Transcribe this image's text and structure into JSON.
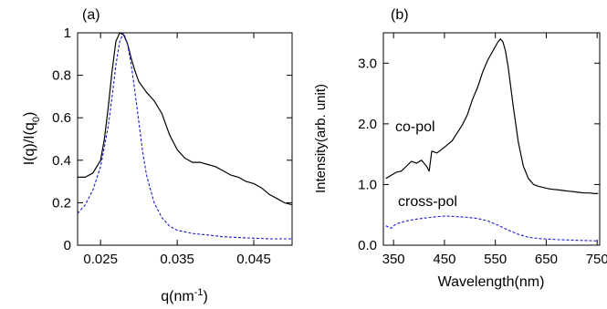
{
  "chart_data": [
    {
      "type": "line",
      "panel_label": "(a)",
      "xlabel": "q(nm",
      "xlabel_sup": "-1",
      "xlabel_close": ")",
      "ylabel": "I(q)/I(q",
      "ylabel_sub": "0",
      "ylabel_close": ")",
      "xlim": [
        0.022,
        0.05
      ],
      "ylim": [
        0,
        1
      ],
      "xticks": [
        0.025,
        0.035,
        0.045
      ],
      "xtick_labels": [
        "0.025",
        "0.035",
        "0.045"
      ],
      "yticks": [
        0,
        0.2,
        0.4,
        0.6,
        0.8,
        1
      ],
      "ytick_labels": [
        "0",
        "0.2",
        "0.4",
        "0.6",
        "0.8",
        "1"
      ],
      "series": [
        {
          "color": "#000000",
          "dash": "solid",
          "x": [
            0.022,
            0.023,
            0.024,
            0.025,
            0.0255,
            0.026,
            0.0265,
            0.027,
            0.0275,
            0.028,
            0.0285,
            0.029,
            0.0295,
            0.03,
            0.031,
            0.032,
            0.033,
            0.034,
            0.035,
            0.036,
            0.037,
            0.038,
            0.039,
            0.04,
            0.041,
            0.042,
            0.043,
            0.044,
            0.045,
            0.046,
            0.047,
            0.048,
            0.049,
            0.05
          ],
          "y": [
            0.32,
            0.32,
            0.34,
            0.4,
            0.5,
            0.65,
            0.82,
            0.96,
            1.0,
            0.99,
            0.95,
            0.88,
            0.82,
            0.77,
            0.72,
            0.68,
            0.62,
            0.52,
            0.45,
            0.41,
            0.39,
            0.39,
            0.38,
            0.37,
            0.35,
            0.33,
            0.32,
            0.3,
            0.29,
            0.27,
            0.24,
            0.22,
            0.2,
            0.19
          ]
        },
        {
          "color": "#1a1acc",
          "dash": "dashed",
          "x": [
            0.022,
            0.023,
            0.024,
            0.025,
            0.026,
            0.0265,
            0.027,
            0.0275,
            0.028,
            0.0285,
            0.029,
            0.0295,
            0.03,
            0.0305,
            0.031,
            0.032,
            0.033,
            0.034,
            0.035,
            0.037,
            0.039,
            0.041,
            0.043,
            0.045,
            0.047,
            0.05
          ],
          "y": [
            0.15,
            0.19,
            0.26,
            0.37,
            0.56,
            0.7,
            0.85,
            0.96,
            1.0,
            0.95,
            0.85,
            0.72,
            0.58,
            0.44,
            0.33,
            0.2,
            0.13,
            0.09,
            0.07,
            0.055,
            0.048,
            0.04,
            0.036,
            0.033,
            0.03,
            0.03
          ]
        }
      ]
    },
    {
      "type": "line",
      "panel_label": "(b)",
      "xlabel": "Wavelength(nm)",
      "ylabel": "Intensity(arb. unit)",
      "xlim": [
        330,
        755
      ],
      "ylim": [
        0,
        3.5
      ],
      "xticks": [
        350,
        450,
        550,
        650,
        750
      ],
      "xtick_labels": [
        "350",
        "450",
        "550",
        "650",
        "750"
      ],
      "yticks": [
        0,
        1,
        2,
        3
      ],
      "ytick_labels": [
        "0.0",
        "1.0",
        "2.0",
        "3.0"
      ],
      "annotations": [
        "co-pol",
        "cross-pol"
      ],
      "series": [
        {
          "name": "co-pol",
          "color": "#000000",
          "dash": "solid",
          "x": [
            335,
            345,
            355,
            365,
            375,
            385,
            395,
            405,
            415,
            420,
            425,
            435,
            445,
            455,
            465,
            475,
            485,
            495,
            505,
            515,
            525,
            535,
            545,
            555,
            560,
            565,
            570,
            575,
            585,
            595,
            605,
            615,
            625,
            635,
            645,
            655,
            665,
            675,
            685,
            695,
            705,
            715,
            725,
            735,
            745,
            752
          ],
          "y": [
            1.1,
            1.15,
            1.2,
            1.22,
            1.3,
            1.38,
            1.35,
            1.4,
            1.3,
            1.22,
            1.55,
            1.52,
            1.58,
            1.65,
            1.72,
            1.85,
            1.98,
            2.15,
            2.4,
            2.6,
            2.85,
            3.05,
            3.2,
            3.35,
            3.4,
            3.35,
            3.2,
            2.95,
            2.3,
            1.7,
            1.3,
            1.1,
            1.0,
            0.97,
            0.95,
            0.93,
            0.92,
            0.91,
            0.9,
            0.89,
            0.88,
            0.87,
            0.86,
            0.86,
            0.85,
            0.85
          ]
        },
        {
          "name": "cross-pol",
          "color": "#1a1acc",
          "dash": "dashed",
          "x": [
            335,
            345,
            355,
            375,
            395,
            415,
            435,
            455,
            475,
            495,
            515,
            535,
            555,
            575,
            595,
            615,
            635,
            655,
            675,
            695,
            715,
            735,
            752
          ],
          "y": [
            0.32,
            0.28,
            0.35,
            0.4,
            0.43,
            0.45,
            0.47,
            0.48,
            0.47,
            0.46,
            0.44,
            0.4,
            0.33,
            0.25,
            0.18,
            0.13,
            0.11,
            0.1,
            0.09,
            0.085,
            0.08,
            0.075,
            0.07
          ]
        }
      ]
    }
  ]
}
